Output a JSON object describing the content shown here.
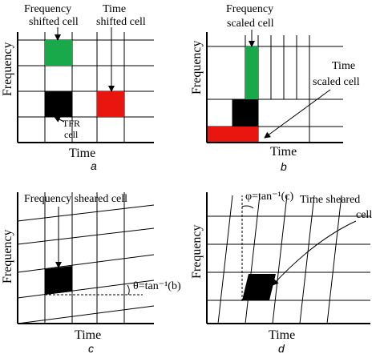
{
  "panels": {
    "a": {
      "letter": "a",
      "xlabel": "Time",
      "ylabel": "Frequency",
      "labels": {
        "freq_shifted_line1": "Frequency",
        "freq_shifted_line2": "shifted cell",
        "time_shifted_line1": "Time",
        "time_shifted_line2": "shifted cell",
        "tfr_line1": "TFR",
        "tfr_line2": "cell"
      }
    },
    "b": {
      "letter": "b",
      "xlabel": "Time",
      "ylabel": "Frequency",
      "labels": {
        "freq_scaled_line1": "Frequency",
        "freq_scaled_line2": "scaled cell",
        "time_scaled_line1": "Time",
        "time_scaled_line2": "scaled cell"
      }
    },
    "c": {
      "letter": "c",
      "xlabel": "Time",
      "ylabel": "Frequency",
      "labels": {
        "sheared": "Frequency sheared cell",
        "theta": "θ=tan⁻¹(b)"
      }
    },
    "d": {
      "letter": "d",
      "xlabel": "Time",
      "ylabel": "Frequency",
      "labels": {
        "phi": "φ=tan⁻¹(c)",
        "sheared_line1": "Time sheared",
        "sheared_line2": "cell"
      }
    }
  },
  "colors": {
    "green": "#1aa94a",
    "red": "#e8160f",
    "black": "#000000"
  }
}
